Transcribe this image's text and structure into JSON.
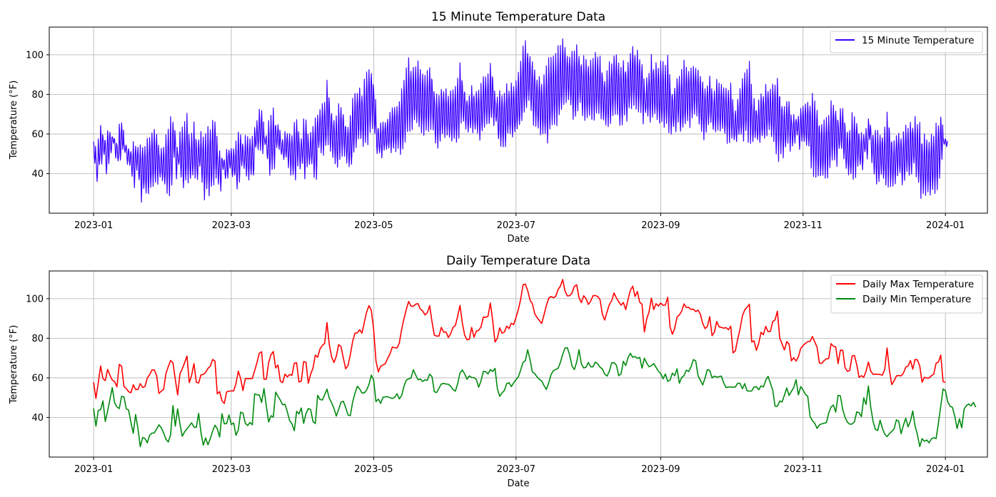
{
  "chart_data": [
    {
      "type": "line",
      "title": "15 Minute Temperature Data",
      "xlabel": "Date",
      "ylabel": "Temperature (°F)",
      "x_ticks": [
        "2023-01",
        "2023-03",
        "2023-05",
        "2023-07",
        "2023-09",
        "2023-11",
        "2024-01"
      ],
      "y_ticks": [
        "40",
        "60",
        "80",
        "100"
      ],
      "xlim": [
        "2022-12-13",
        "2024-01-19"
      ],
      "ylim": [
        20,
        114
      ],
      "grid": true,
      "legend_position": "top-right",
      "series": [
        {
          "name": "15 Minute Temperature",
          "color": "#3a00ff",
          "x_start": "2023-01-01",
          "x_end": "2024-01-01",
          "x_step_days": 1,
          "daily_max": [
            57.8,
            49.6,
            57.6,
            66.0,
            59.6,
            58.6,
            64.3,
            61.4,
            58.9,
            58.1,
            55.5,
            66.8,
            65.9,
            55.7,
            54.6,
            53.0,
            52.5,
            56.5,
            54.1,
            54.1,
            57.1,
            55.2,
            55.6,
            59.9,
            61.6,
            64.0,
            64.0,
            61.2,
            52.1,
            53.3,
            54.2,
            62.2,
            65.7,
            68.8,
            67.6,
            59.3,
            51.4,
            62.1,
            64.6,
            67.7,
            71.0,
            57.6,
            61.3,
            67.2,
            57.8,
            57.4,
            61.5,
            61.7,
            62.8,
            64.8,
            65.9,
            69.3,
            68.5,
            51.9,
            53.1,
            48.5,
            47.1,
            52.9,
            53.3,
            53.4,
            53.4,
            57.1,
            63.4,
            59.7,
            53.6,
            59.6,
            59.6,
            59.6,
            59.7,
            63.6,
            67.7,
            72.5,
            73.2,
            59.3,
            59.3,
            67.7,
            71.7,
            73.3,
            65.0,
            66.5,
            58.4,
            57.6,
            61.9,
            60.5,
            61.7,
            61.3,
            67.4,
            67.6,
            57.9,
            58.4,
            68.2,
            67.9,
            57.3,
            61.8,
            65.0,
            71.5,
            70.4,
            74.6,
            76.4,
            77.4,
            87.9,
            76.7,
            70.5,
            67.8,
            70.9,
            76.8,
            75.8,
            70.1,
            64.6,
            66.2,
            71.7,
            78.5,
            82.6,
            82.7,
            84.3,
            82.6,
            88.1,
            93.3,
            96.5,
            94.1,
            84.4,
            68.5,
            63.0,
            65.8,
            66.5,
            67.2,
            69.9,
            72.1,
            75.6,
            75.2,
            75.1,
            77.6,
            84.6,
            89.9,
            94.6,
            98.6,
            96.2,
            96.2,
            97.2,
            97.5,
            94.8,
            93.8,
            91.8,
            92.9,
            96.5,
            88.4,
            81.6,
            81.1,
            81.1,
            85.5,
            83.1,
            83.2,
            80.4,
            82.3,
            85.5,
            86.4,
            91.1,
            96.6,
            87.7,
            81.6,
            79.2,
            79.5,
            85.5,
            80.5,
            83.6,
            84.0,
            85.7,
            90.7,
            90.6,
            91.1,
            97.8,
            89.1,
            78.1,
            80.0,
            85.3,
            82.6,
            83.1,
            86.1,
            84.9,
            87.6,
            86.9,
            90.6,
            94.5,
            99.7,
            107.0,
            107.4,
            104.1,
            99.4,
            97.5,
            92.5,
            90.5,
            89.0,
            87.5,
            91.8,
            96.5,
            100.2,
            101.1,
            100.5,
            101.1,
            104.6,
            106.3,
            109.7,
            103.9,
            101.4,
            101.5,
            102.9,
            106.3,
            107.0,
            100.5,
            98.0,
            101.5,
            100.0,
            97.1,
            98.8,
            101.5,
            101.6,
            101.1,
            99.5,
            92.2,
            89.2,
            93.4,
            97.0,
            99.0,
            102.9,
            100.4,
            98.5,
            96.7,
            98.1,
            94.5,
            99.6,
            104.2,
            106.3,
            101.1,
            103.6,
            98.2,
            97.2,
            83.2,
            89.8,
            93.3,
            100.3,
            94.5,
            97.5,
            96.3,
            97.8,
            96.6,
            96.8,
            100.7,
            85.8,
            82.0,
            85.0,
            90.7,
            91.8,
            93.7,
            97.4,
            95.5,
            95.6,
            94.6,
            94.7,
            93.5,
            94.2,
            92.2,
            87.5,
            84.9,
            86.0,
            90.9,
            81.3,
            83.1,
            88.5,
            85.8,
            85.5,
            85.1,
            85.4,
            84.3,
            86.1,
            72.6,
            73.7,
            79.6,
            84.7,
            91.3,
            94.3,
            95.7,
            97.2,
            78.1,
            78.7,
            73.9,
            77.5,
            83.0,
            81.8,
            86.0,
            83.3,
            83.5,
            88.4,
            89.3,
            93.7,
            80.1,
            77.1,
            74.1,
            78.3,
            77.1,
            68.6,
            70.2,
            68.5,
            70.7,
            74.9,
            76.3,
            77.4,
            78.3,
            78.4,
            80.9,
            78.2,
            75.5,
            67.5,
            67.3,
            68.7,
            69.6,
            69.8,
            77.3,
            76.0,
            75.6,
            67.2,
            74.0,
            73.9,
            65.2,
            63.3,
            63.7,
            71.1,
            71.3,
            66.7,
            60.3,
            61.1,
            60.3,
            63.4,
            68.0,
            63.4,
            61.8,
            61.9,
            61.8,
            61.7,
            61.4,
            64.3,
            75.1,
            63.8,
            56.6,
            58.5,
            61.0,
            61.2,
            61.0,
            62.4,
            65.4,
            66.0,
            68.8,
            64.4,
            69.3,
            69.1,
            66.0,
            57.8,
            60.3,
            59.9,
            59.9,
            61.1,
            61.9,
            67.4,
            68.0,
            71.5,
            58.1,
            57.8
          ],
          "daily_min": [
            44.6,
            35.6,
            43.6,
            43.9,
            48.4,
            38.0,
            43.2,
            49.2,
            55.1,
            47.4,
            45.3,
            44.5,
            50.7,
            50.4,
            44.4,
            43.7,
            37.5,
            32.0,
            41.5,
            34.4,
            25.2,
            29.9,
            29.4,
            27.2,
            31.0,
            32.1,
            32.2,
            34.2,
            36.3,
            34.8,
            32.2,
            29.0,
            27.6,
            31.3,
            46.0,
            35.6,
            44.4,
            36.7,
            30.5,
            32.8,
            34.2,
            35.8,
            37.3,
            35.2,
            35.0,
            42.1,
            32.4,
            26.0,
            29.7,
            26.2,
            29.3,
            33.1,
            36.1,
            34.3,
            30.1,
            41.9,
            36.8,
            36.9,
            41.3,
            36.4,
            37.3,
            31.0,
            33.7,
            42.7,
            42.2,
            37.1,
            35.9,
            37.5,
            36.3,
            51.9,
            51.5,
            51.4,
            47.6,
            54.6,
            45.9,
            37.7,
            40.9,
            40.2,
            52.8,
            50.7,
            48.8,
            46.4,
            46.7,
            42.9,
            38.4,
            36.8,
            33.3,
            43.1,
            41.8,
            44.8,
            37.0,
            42.0,
            44.5,
            44.0,
            38.0,
            36.9,
            51.2,
            49.1,
            48.8,
            51.4,
            54.3,
            49.7,
            47.4,
            44.6,
            40.7,
            44.1,
            47.7,
            48.2,
            45.1,
            41.3,
            40.9,
            47.9,
            52.2,
            55.8,
            54.4,
            52.4,
            52.4,
            53.9,
            56.7,
            61.4,
            58.8,
            48.0,
            49.3,
            47.1,
            50.2,
            50.4,
            50.5,
            50.0,
            49.6,
            50.2,
            52.0,
            49.4,
            51.0,
            55.8,
            58.9,
            59.5,
            59.9,
            64.1,
            61.5,
            59.0,
            59.4,
            58.2,
            59.0,
            58.8,
            61.9,
            60.6,
            53.0,
            52.6,
            54.8,
            56.9,
            57.2,
            56.9,
            56.8,
            55.8,
            54.1,
            53.3,
            57.0,
            62.5,
            64.0,
            62.0,
            59.3,
            61.0,
            60.2,
            60.1,
            59.2,
            55.3,
            58.5,
            63.3,
            63.1,
            62.0,
            64.2,
            63.2,
            64.8,
            54.6,
            50.7,
            52.4,
            53.6,
            57.1,
            57.6,
            55.6,
            57.5,
            59.2,
            60.5,
            64.0,
            67.8,
            68.7,
            74.2,
            69.3,
            63.0,
            62.2,
            60.5,
            59.3,
            58.4,
            56.1,
            54.2,
            57.4,
            61.6,
            63.6,
            64.2,
            64.8,
            67.8,
            71.8,
            75.1,
            75.2,
            71.5,
            66.0,
            64.2,
            68.0,
            74.2,
            67.1,
            65.0,
            65.4,
            67.8,
            65.6,
            65.6,
            68.0,
            67.1,
            65.4,
            64.5,
            61.9,
            60.9,
            63.4,
            67.6,
            67.7,
            66.5,
            61.1,
            62.0,
            68.4,
            66.2,
            70.2,
            72.4,
            70.4,
            70.8,
            69.8,
            70.4,
            64.9,
            69.9,
            67.5,
            65.6,
            66.2,
            67.2,
            65.3,
            63.4,
            62.2,
            59.5,
            62.0,
            58.2,
            58.9,
            62.4,
            61.1,
            64.6,
            57.3,
            60.2,
            61.2,
            63.9,
            63.2,
            65.6,
            69.2,
            68.6,
            61.1,
            58.8,
            56.4,
            59.9,
            64.2,
            63.7,
            60.0,
            60.9,
            60.4,
            60.6,
            60.9,
            57.5,
            55.1,
            55.4,
            55.4,
            55.2,
            55.4,
            57.3,
            57.2,
            54.5,
            57.1,
            53.5,
            53.3,
            53.4,
            55.4,
            55.5,
            54.0,
            56.0,
            55.4,
            58.7,
            60.8,
            57.3,
            53.8,
            45.7,
            45.7,
            48.3,
            47.8,
            51.2,
            54.9,
            51.1,
            53.2,
            55.1,
            59.1,
            51.4,
            55.6,
            53.9,
            51.7,
            50.7,
            40.5,
            38.4,
            37.1,
            34.5,
            36.2,
            36.8,
            37.1,
            37.4,
            42.2,
            45.3,
            46.3,
            42.7,
            51.2,
            50.9,
            44.0,
            40.1,
            37.6,
            36.6,
            36.7,
            37.8,
            42.8,
            42.4,
            40.4,
            49.9,
            46.6,
            55.9,
            45.2,
            37.9,
            34.0,
            33.4,
            38.6,
            34.5,
            31.6,
            30.3,
            31.8,
            33.0,
            34.2,
            38.8,
            38.1,
            31.8,
            36.1,
            39.6,
            35.3,
            38.1,
            43.3,
            35.7,
            31.3,
            25.3,
            29.3,
            28.0,
            28.6,
            27.2,
            29.2,
            29.8,
            29.3,
            37.2,
            45.8,
            54.4,
            53.5,
            47.9,
            45.7,
            45.1,
            40.7,
            34.4,
            39.3,
            34.8,
            44.2,
            46.0,
            46.8,
            45.9,
            47.6,
            45.2
          ]
        }
      ]
    },
    {
      "type": "line",
      "title": "Daily Temperature Data",
      "xlabel": "Date",
      "ylabel": "Temperature (°F)",
      "x_ticks": [
        "2023-01",
        "2023-03",
        "2023-05",
        "2023-07",
        "2023-09",
        "2023-11",
        "2024-01"
      ],
      "y_ticks": [
        "40",
        "60",
        "80",
        "100"
      ],
      "xlim": [
        "2022-12-13",
        "2024-01-19"
      ],
      "ylim": [
        20,
        114
      ],
      "grid": true,
      "legend_position": "top-right",
      "series": [
        {
          "name": "Daily Max Temperature",
          "color": "#ff0000",
          "ref": "daily_max"
        },
        {
          "name": "Daily Min Temperature",
          "color": "#008a0e",
          "ref": "daily_min"
        }
      ]
    }
  ]
}
